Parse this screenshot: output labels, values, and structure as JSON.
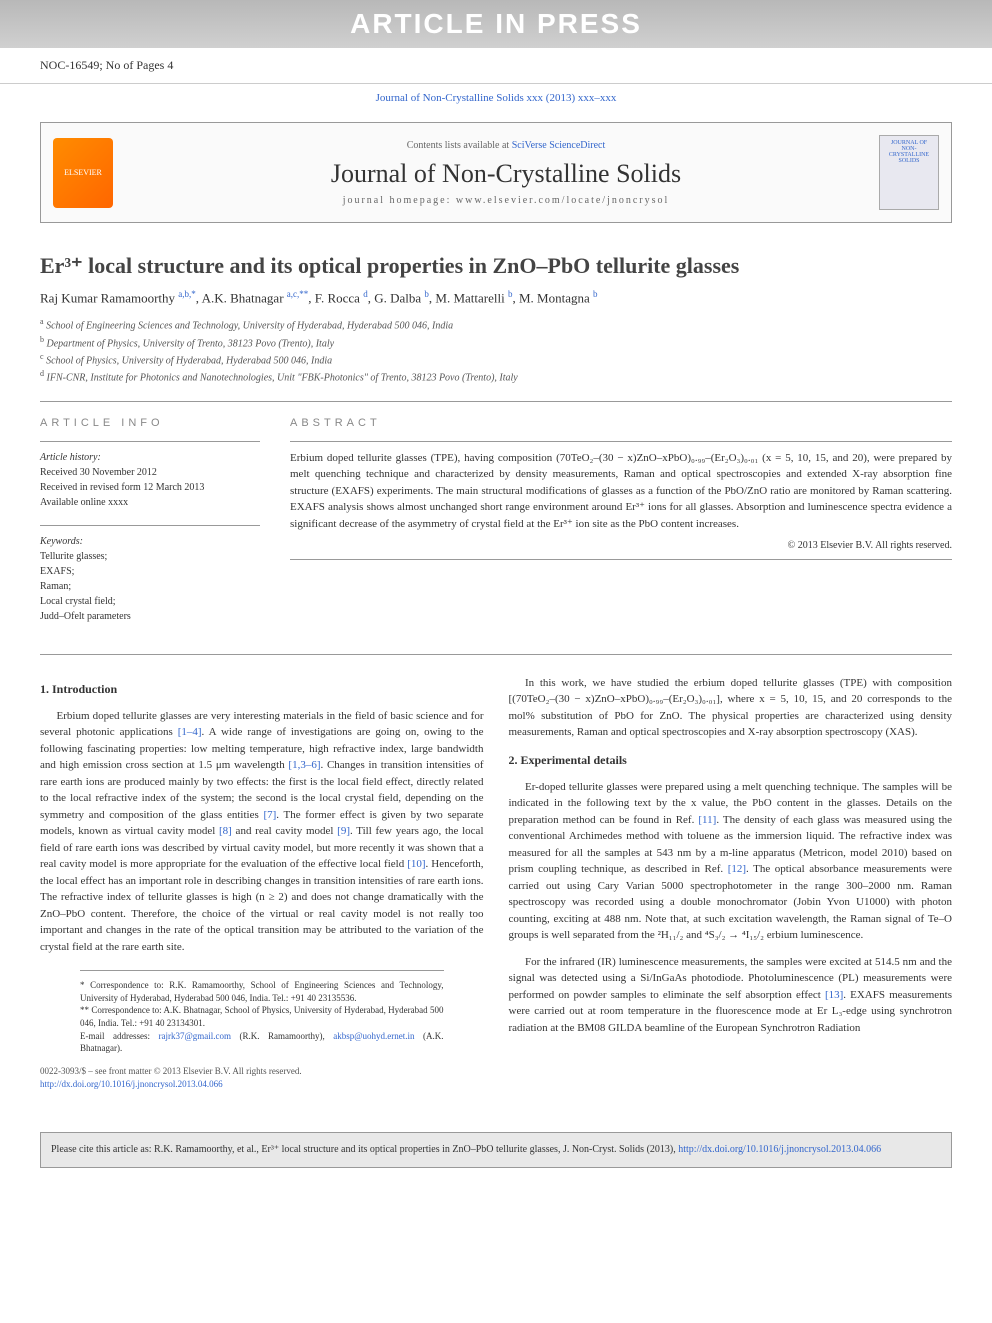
{
  "banner": "ARTICLE IN PRESS",
  "article_id": "NOC-16549; No of Pages 4",
  "journal_ref": "Journal of Non-Crystalline Solids xxx (2013) xxx–xxx",
  "header": {
    "contents_prefix": "Contents lists available at ",
    "contents_link": "SciVerse ScienceDirect",
    "journal_name": "Journal of Non-Crystalline Solids",
    "homepage": "journal homepage: www.elsevier.com/locate/jnoncrysol",
    "publisher_logo": "ELSEVIER",
    "cover_text": "JOURNAL OF NON-CRYSTALLINE SOLIDS"
  },
  "title": "Er³⁺ local structure and its optical properties in ZnO–PbO tellurite glasses",
  "authors": [
    {
      "name": "Raj Kumar Ramamoorthy",
      "sup": "a,b,*"
    },
    {
      "name": "A.K. Bhatnagar",
      "sup": "a,c,**"
    },
    {
      "name": "F. Rocca",
      "sup": "d"
    },
    {
      "name": "G. Dalba",
      "sup": "b"
    },
    {
      "name": "M. Mattarelli",
      "sup": "b"
    },
    {
      "name": "M. Montagna",
      "sup": "b"
    }
  ],
  "affiliations": [
    {
      "sup": "a",
      "text": "School of Engineering Sciences and Technology, University of Hyderabad, Hyderabad 500 046, India"
    },
    {
      "sup": "b",
      "text": "Department of Physics, University of Trento, 38123 Povo (Trento), Italy"
    },
    {
      "sup": "c",
      "text": "School of Physics, University of Hyderabad, Hyderabad 500 046, India"
    },
    {
      "sup": "d",
      "text": "IFN-CNR, Institute for Photonics and Nanotechnologies, Unit \"FBK-Photonics\" of Trento, 38123 Povo (Trento), Italy"
    }
  ],
  "info": {
    "heading": "ARTICLE INFO",
    "history_label": "Article history:",
    "received": "Received 30 November 2012",
    "revised": "Received in revised form 12 March 2013",
    "available": "Available online xxxx",
    "keywords_label": "Keywords:",
    "keywords": [
      "Tellurite glasses;",
      "EXAFS;",
      "Raman;",
      "Local crystal field;",
      "Judd–Ofelt parameters"
    ]
  },
  "abstract": {
    "heading": "ABSTRACT",
    "text": "Erbium doped tellurite glasses (TPE), having composition (70TeO₂–(30 − x)ZnO–xPbO)₀.₉₉–(Er₂O₃)₀.₀₁ (x = 5, 10, 15, and 20), were prepared by melt quenching technique and characterized by density measurements, Raman and optical spectroscopies and extended X-ray absorption fine structure (EXAFS) experiments. The main structural modifications of glasses as a function of the PbO/ZnO ratio are monitored by Raman scattering. EXAFS analysis shows almost unchanged short range environment around Er³⁺ ions for all glasses. Absorption and luminescence spectra evidence a significant decrease of the asymmetry of crystal field at the Er³⁺ ion site as the PbO content increases.",
    "copyright": "© 2013 Elsevier B.V. All rights reserved."
  },
  "body": {
    "col1": {
      "h1": "1. Introduction",
      "p1_a": "Erbium doped tellurite glasses are very interesting materials in the field of basic science and for several photonic applications ",
      "p1_ref1": "[1–4]",
      "p1_b": ". A wide range of investigations are going on, owing to the following fascinating properties: low melting temperature, high refractive index, large bandwidth and high emission cross section at 1.5 μm wavelength ",
      "p1_ref2": "[1,3–6]",
      "p1_c": ". Changes in transition intensities of rare earth ions are produced mainly by two effects: the first is the local field effect, directly related to the local refractive index of the system; the second is the local crystal field, depending on the symmetry and composition of the glass entities ",
      "p1_ref3": "[7]",
      "p1_d": ". The former effect is given by two separate models, known as virtual cavity model ",
      "p1_ref4": "[8]",
      "p1_e": " and real cavity model ",
      "p1_ref5": "[9]",
      "p1_f": ". Till few years ago, the local field of rare earth ions was described by virtual cavity model, but more recently it was shown that a real cavity model is more appropriate for the evaluation of the effective local field ",
      "p1_ref6": "[10]",
      "p1_g": ". Henceforth, the local effect has an important role in describing changes in transition intensities of rare earth ions. The refractive index of tellurite glasses is high (n ≥ 2) and does not change dramatically with the ZnO–PbO content. Therefore, the choice of the virtual or real cavity model is not really too important and changes in the rate of the optical transition may be attributed to the variation of the crystal field at the rare earth site."
    },
    "col2": {
      "p1": "In this work, we have studied the erbium doped tellurite glasses (TPE) with composition [(70TeO₂–(30 − x)ZnO–xPbO)₀.₉₉–(Er₂O₃)₀.₀₁], where x = 5, 10, 15, and 20 corresponds to the mol% substitution of PbO for ZnO. The physical properties are characterized using density measurements, Raman and optical spectroscopies and X-ray absorption spectroscopy (XAS).",
      "h2": "2. Experimental details",
      "p2_a": "Er-doped tellurite glasses were prepared using a melt quenching technique. The samples will be indicated in the following text by the x value, the PbO content in the glasses. Details on the preparation method can be found in Ref. ",
      "p2_ref1": "[11]",
      "p2_b": ". The density of each glass was measured using the conventional Archimedes method with toluene as the immersion liquid. The refractive index was measured for all the samples at 543 nm by a m-line apparatus (Metricon, model 2010) based on prism coupling technique, as described in Ref. ",
      "p2_ref2": "[12]",
      "p2_c": ". The optical absorbance measurements were carried out using Cary Varian 5000 spectrophotometer in the range 300–2000 nm. Raman spectroscopy was recorded using a double monochromator (Jobin Yvon U1000) with photon counting, exciting at 488 nm. Note that, at such excitation wavelength, the Raman signal of Te–O groups is well separated from the ²H₁₁/₂ and ⁴S₃/₂ → ⁴I₁₅/₂ erbium luminescence.",
      "p3_a": "For the infrared (IR) luminescence measurements, the samples were excited at 514.5 nm and the signal was detected using a Si/InGaAs photodiode. Photoluminescence (PL) measurements were performed on powder samples to eliminate the self absorption effect ",
      "p3_ref1": "[13]",
      "p3_b": ". EXAFS measurements were carried out at room temperature in the fluorescence mode at Er L₃-edge using synchrotron radiation at the BM08 GILDA beamline of the European Synchrotron Radiation"
    }
  },
  "footnotes": {
    "f1": "* Correspondence to: R.K. Ramamoorthy, School of Engineering Sciences and Technology, University of Hyderabad, Hyderabad 500 046, India. Tel.: +91 40 23135536.",
    "f2": "** Correspondence to: A.K. Bhatnagar, School of Physics, University of Hyderabad, Hyderabad 500 046, India. Tel.: +91 40 23134301.",
    "f3_a": "E-mail addresses: ",
    "f3_email1": "rajrk37@gmail.com",
    "f3_b": " (R.K. Ramamoorthy), ",
    "f3_email2": "akbsp@uohyd.ernet.in",
    "f3_c": " (A.K. Bhatnagar)."
  },
  "footer": {
    "issn": "0022-3093/$ – see front matter © 2013 Elsevier B.V. All rights reserved.",
    "doi": "http://dx.doi.org/10.1016/j.jnoncrysol.2013.04.066"
  },
  "citation": {
    "text_a": "Please cite this article as: R.K. Ramamoorthy, et al., Er³⁺ local structure and its optical properties in ZnO–PbO tellurite glasses, J. Non-Cryst. Solids (2013), ",
    "link": "http://dx.doi.org/10.1016/j.jnoncrysol.2013.04.066"
  },
  "colors": {
    "link": "#3366cc",
    "banner_bg_top": "#b8b8b8",
    "banner_bg_bottom": "#d0d0d0",
    "elsevier_orange": "#ff8c00",
    "citation_bg": "#e8e8e8",
    "text": "#333333",
    "muted": "#888888"
  }
}
